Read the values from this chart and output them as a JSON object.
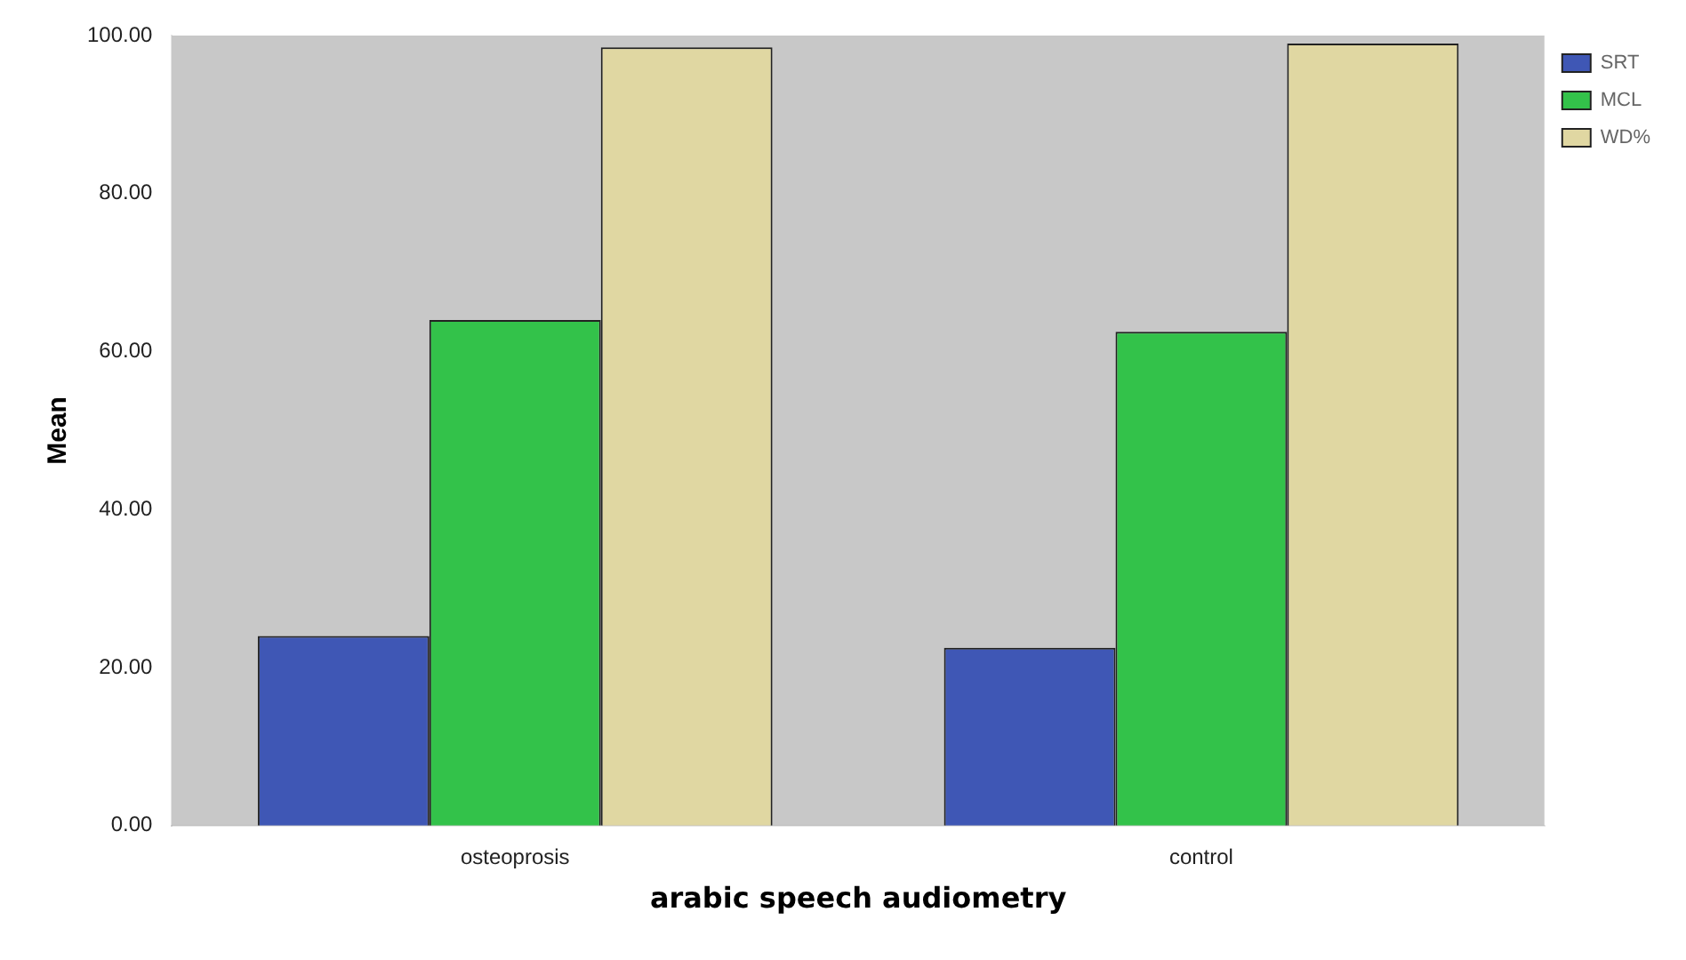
{
  "chart_data": {
    "type": "bar",
    "xlabel": "arabic speech audiometry",
    "ylabel": "Mean",
    "categories": [
      "osteoprosis",
      "control"
    ],
    "series": [
      {
        "name": "SRT",
        "color": "#3f57b5",
        "values": [
          24,
          22.5
        ]
      },
      {
        "name": "MCL",
        "color": "#33c24a",
        "values": [
          64,
          62.5
        ]
      },
      {
        "name": "WD%",
        "color": "#e0d7a2",
        "values": [
          98.5,
          99
        ]
      }
    ],
    "ylim": [
      0,
      100
    ],
    "yticks": [
      {
        "value": 0,
        "label": "0.00"
      },
      {
        "value": 20,
        "label": "20.00"
      },
      {
        "value": 40,
        "label": "40.00"
      },
      {
        "value": 60,
        "label": "60.00"
      },
      {
        "value": 80,
        "label": "80.00"
      },
      {
        "value": 100,
        "label": "100.00"
      }
    ],
    "grid": false,
    "legend": "top right"
  }
}
